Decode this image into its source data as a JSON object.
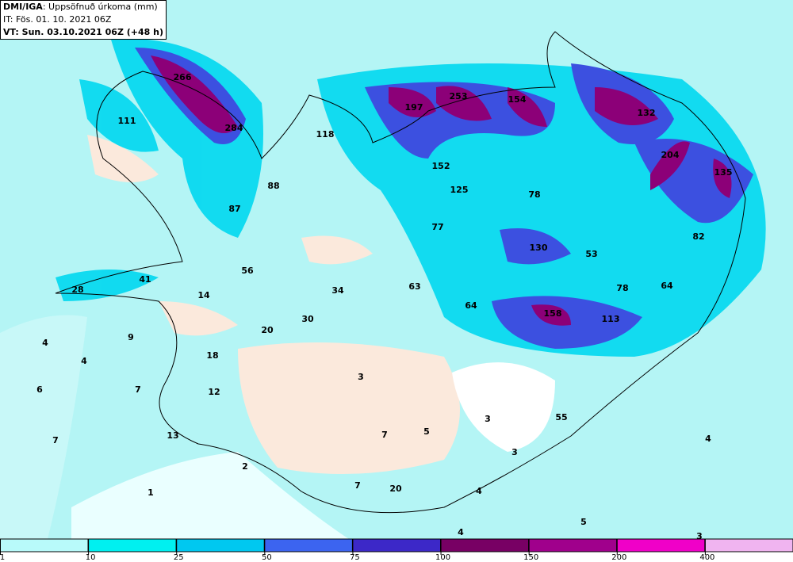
{
  "header": {
    "source": "DMI/IGA",
    "title": ": Uppsöfnuð úrkoma (mm)",
    "issue_time": "IT: Fös. 01. 10. 2021 06Z",
    "valid_time": "VT: Sun. 03.10.2021 06Z (+48 h)"
  },
  "labels": [
    266,
    284,
    111,
    118,
    197,
    253,
    154,
    132,
    204,
    135,
    152,
    125,
    78,
    88,
    87,
    77,
    130,
    53,
    82,
    56,
    41,
    28,
    14,
    63,
    34,
    78,
    64,
    64,
    30,
    20,
    158,
    113,
    4,
    9,
    4,
    18,
    3,
    6,
    7,
    12,
    55,
    3,
    13,
    7,
    5,
    7,
    4,
    3,
    2,
    7,
    20,
    4,
    1,
    5,
    4,
    3
  ],
  "legend": {
    "ticks": [
      1,
      10,
      25,
      50,
      75,
      100,
      150,
      200,
      400
    ],
    "colors": [
      "#b8fafa",
      "#00f0f0",
      "#00c8f0",
      "#3c64f0",
      "#3c28c8",
      "#780064",
      "#a0008c",
      "#f000c8",
      "#f0b4f0"
    ]
  }
}
